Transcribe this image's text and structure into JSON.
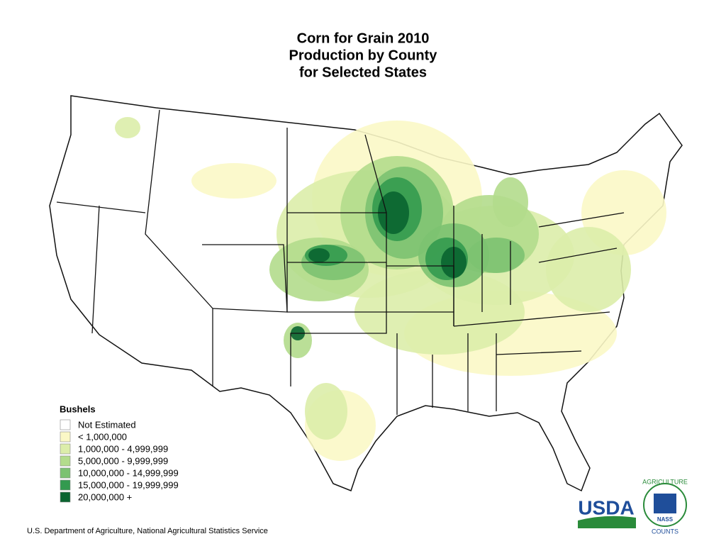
{
  "title": [
    "Corn for Grain 2010",
    "Production by County",
    "for Selected States"
  ],
  "legend": {
    "title": "Bushels",
    "items": [
      {
        "label": "Not Estimated",
        "color": "#ffffff"
      },
      {
        "label": "< 1,000,000",
        "color": "#fbf8c6"
      },
      {
        "label": "1,000,000 - 4,999,999",
        "color": "#dcedaa"
      },
      {
        "label": "5,000,000 - 9,999,999",
        "color": "#b3dc8c"
      },
      {
        "label": "10,000,000 - 14,999,999",
        "color": "#7cc271"
      },
      {
        "label": "15,000,000 - 19,999,999",
        "color": "#339a4f"
      },
      {
        "label": "20,000,000 +",
        "color": "#0a6430"
      }
    ]
  },
  "footer": "U.S. Department of Agriculture, National Agricultural Statistics Service",
  "logos": {
    "usda": "USDA",
    "nass_top": "AGRICULTURE",
    "nass_center": "NASS",
    "nass_bottom": "COUNTS"
  }
}
